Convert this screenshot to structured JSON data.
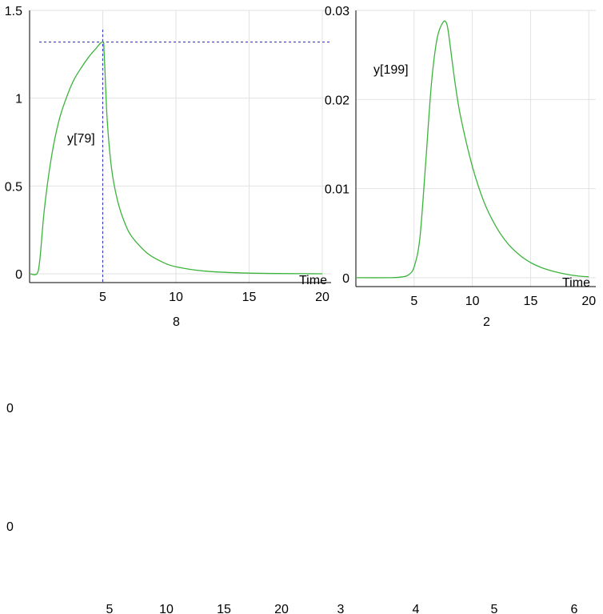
{
  "chart_data": [
    {
      "type": "line",
      "series": [
        {
          "name": "y[79]"
        }
      ],
      "annotation": "y[79]",
      "xlabel": "Time",
      "xlim": [
        0,
        20.6
      ],
      "ylim": [
        -0.05,
        1.5
      ],
      "xticks": [
        "5",
        "10",
        "15",
        "20"
      ],
      "yticks": [
        "0",
        "0.5",
        "1",
        "1.5"
      ],
      "x": [
        0,
        0.5,
        0.7,
        1,
        1.5,
        2,
        2.5,
        3,
        3.5,
        4,
        4.5,
        5,
        5.1,
        5.3,
        5.6,
        6,
        6.5,
        7,
        8,
        9,
        10,
        12,
        15,
        20
      ],
      "values": [
        0,
        0,
        0.08,
        0.36,
        0.67,
        0.87,
        1.0,
        1.1,
        1.17,
        1.23,
        1.28,
        1.32,
        1.25,
        0.88,
        0.6,
        0.42,
        0.29,
        0.21,
        0.12,
        0.07,
        0.04,
        0.015,
        0.004,
        0
      ],
      "crosshair": {
        "x": 5.0,
        "y": 1.32
      },
      "bottom_label": "8",
      "grid": true
    },
    {
      "type": "line",
      "series": [
        {
          "name": "y[199]"
        }
      ],
      "annotation": "y[199]",
      "xlabel": "Time",
      "xlim": [
        0,
        20.6
      ],
      "ylim": [
        -0.001,
        0.03
      ],
      "xticks": [
        "5",
        "10",
        "15",
        "20"
      ],
      "yticks": [
        "0",
        "0.01",
        "0.02",
        "0.03"
      ],
      "x": [
        0,
        3,
        4,
        4.5,
        5,
        5.5,
        6,
        6.5,
        7,
        7.5,
        7.8,
        8,
        8.5,
        9,
        10,
        11,
        12,
        13,
        14,
        15,
        16,
        17,
        18,
        19,
        20
      ],
      "values": [
        0,
        0,
        0.0001,
        0.0003,
        0.0012,
        0.0045,
        0.013,
        0.022,
        0.027,
        0.0287,
        0.0285,
        0.027,
        0.022,
        0.018,
        0.0125,
        0.0085,
        0.0058,
        0.0039,
        0.0026,
        0.0017,
        0.0011,
        0.0007,
        0.0004,
        0.0002,
        0.0001
      ],
      "bottom_label": "2",
      "grid": true
    }
  ],
  "lower_fragments": {
    "left_ticks": [
      "0",
      "0"
    ],
    "bottom_ticks": [
      "5",
      "10",
      "15",
      "20",
      "3",
      "4",
      "5",
      "6"
    ]
  }
}
